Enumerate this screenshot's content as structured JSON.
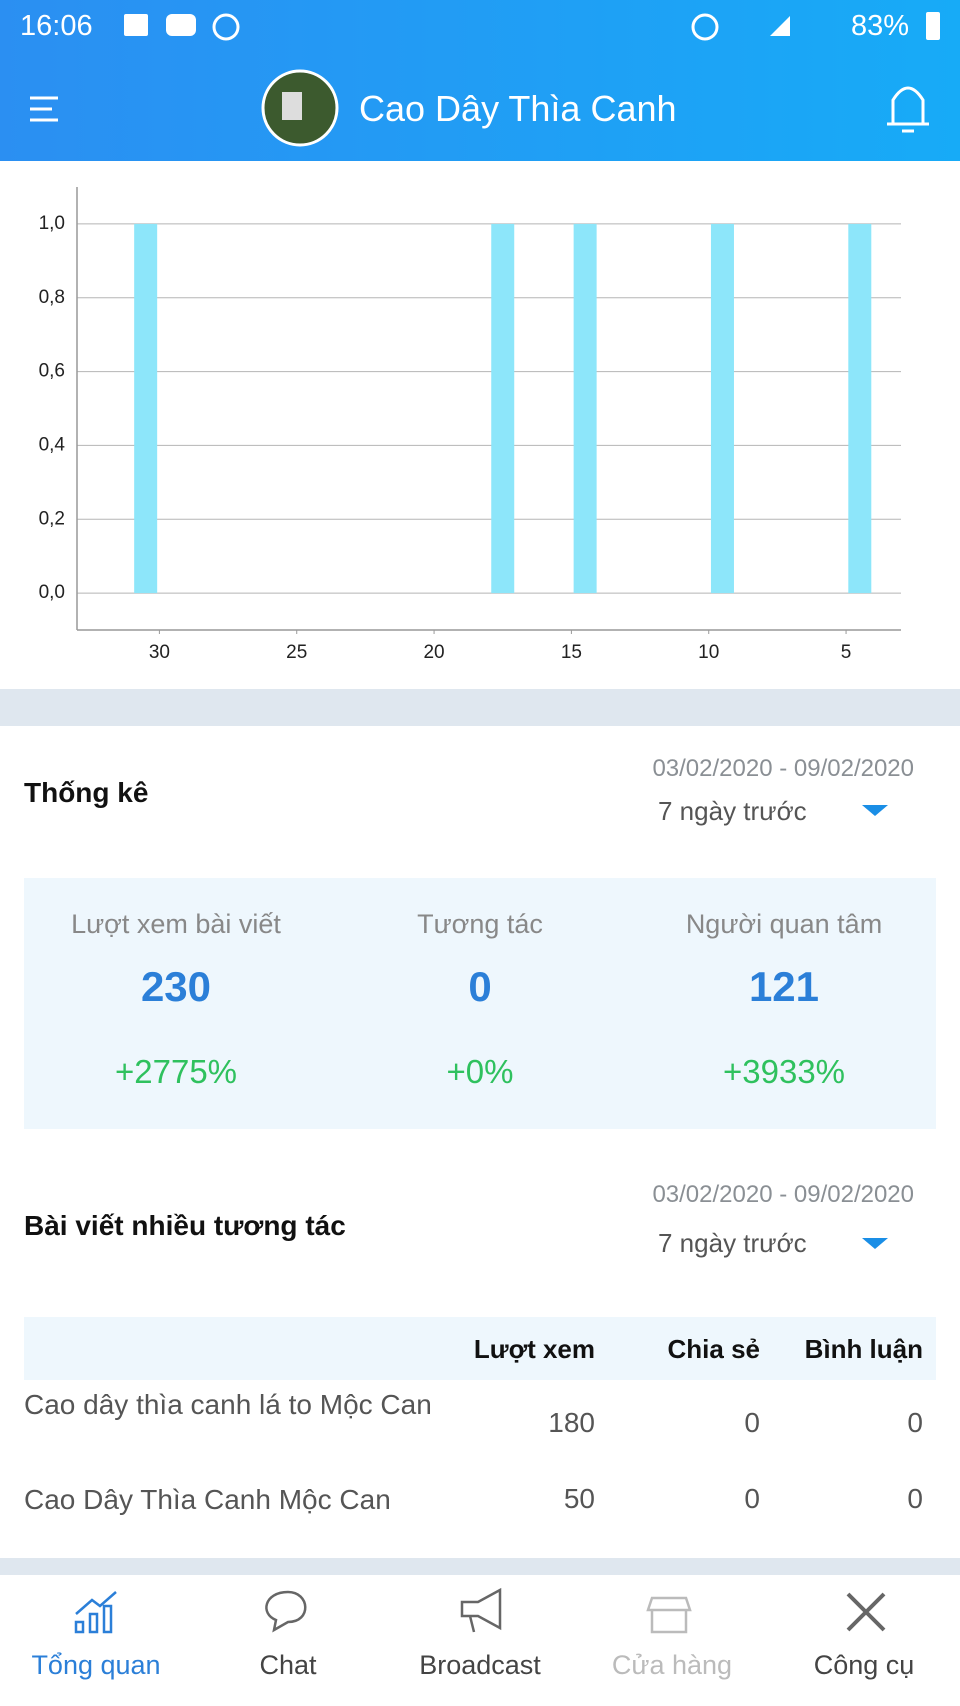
{
  "status_bar": {
    "time": "16:06",
    "battery": "83%"
  },
  "header": {
    "title": "Cao Dây Thìa Canh"
  },
  "chart_data": {
    "type": "bar",
    "x": [
      30.5,
      17.5,
      14.5,
      9.5,
      4.5
    ],
    "values": [
      1,
      1,
      1,
      1,
      1
    ],
    "color": "#8de6fa",
    "xlim": [
      33,
      3
    ],
    "xticks": [
      30,
      25,
      20,
      15,
      10,
      5
    ],
    "ylim": [
      -0.1,
      1.1
    ],
    "yticks": [
      {
        "value": 0,
        "label": "0,0"
      },
      {
        "value": 0.2,
        "label": "0,2"
      },
      {
        "value": 0.4,
        "label": "0,4"
      },
      {
        "value": 0.6,
        "label": "0,6"
      },
      {
        "value": 0.8,
        "label": "0,8"
      },
      {
        "value": 1,
        "label": "1,0"
      }
    ],
    "grid": true
  },
  "stats": {
    "title": "Thống kê",
    "date_range": "03/02/2020 - 09/02/2020",
    "period": "7 ngày trước",
    "items": [
      {
        "label": "Lượt xem bài viết",
        "value": 230,
        "change": "+2775%"
      },
      {
        "label": "Tương tác",
        "value": 0,
        "change": "+0%"
      },
      {
        "label": "Người quan tâm",
        "value": 121,
        "change": "+3933%"
      }
    ]
  },
  "top_posts": {
    "title": "Bài viết nhiều tương tác",
    "date_range": "03/02/2020 - 09/02/2020",
    "period": "7 ngày trước",
    "columns": [
      "Lượt xem",
      "Chia sẻ",
      "Bình luận"
    ],
    "rows": [
      [
        "Cao dây thìa canh lá to Mộc Can",
        180,
        0,
        0
      ],
      [
        "Cao Dây Thìa Canh Mộc Can",
        50,
        0,
        0
      ]
    ]
  },
  "nav": [
    "Tổng quan",
    "Chat",
    "Broadcast",
    "Cửa hàng",
    "Công cụ"
  ]
}
